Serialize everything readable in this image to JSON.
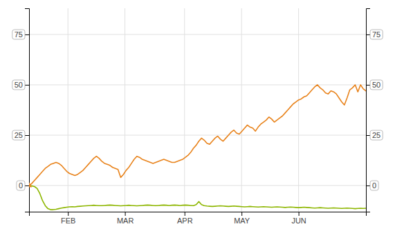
{
  "chart_data": {
    "type": "line",
    "x": [
      0,
      1.04,
      2.08,
      3.12,
      4.16,
      5.2,
      6.24,
      7.28,
      8.32,
      9.36,
      10.4,
      11.44,
      12.48,
      13.52,
      14.56,
      15.6,
      16.64,
      17.68,
      18.72,
      19.76,
      20.8,
      21.84,
      22.88,
      23.92,
      24.96,
      26,
      27.04,
      28.08,
      29.12,
      30.16,
      31.2,
      32.24,
      33.28,
      34.32,
      35.36,
      36.4,
      37.44,
      38.48,
      39.52,
      40.56,
      41.6,
      42.64,
      43.68,
      44.72,
      45.76,
      46.8,
      47.84,
      48.88,
      49.92,
      50.96,
      52,
      53.04,
      54.08,
      55.12,
      56.16,
      57.2,
      58.24,
      59.28,
      60.32,
      61.36,
      62.4,
      63.44,
      64.48,
      65.52,
      66.56,
      67.6,
      68.64,
      69.68,
      70.72,
      71.76,
      72.8,
      73.84,
      74.88,
      75.92,
      76.96,
      78,
      79.04,
      80.08,
      81.12,
      82.16,
      83.2,
      84.24,
      85.28,
      86.32,
      87.36,
      88.4,
      89.44,
      90.48,
      91.52,
      92.56,
      93.6,
      94.64,
      95.68,
      96.72,
      97.76,
      98.8,
      99.84,
      100.88,
      101.92,
      102.96,
      104,
      105.04,
      106.08,
      107.12,
      108.16,
      109.2,
      110.24,
      111.28,
      112.32,
      113.36,
      114.4,
      115.44,
      116.48,
      117.52,
      118.56,
      119.6,
      120.64,
      121.68,
      122.72,
      123.76,
      124.8,
      125.84,
      126.88,
      127.92,
      128.96,
      130
    ],
    "series": [
      {
        "color": "#E8821A",
        "values": [
          0.0,
          1.0,
          2.5,
          4.0,
          5.5,
          7.0,
          8.5,
          9.5,
          10.5,
          11.0,
          11.5,
          11.0,
          10.0,
          8.5,
          7.0,
          6.0,
          5.5,
          5.0,
          5.5,
          6.5,
          7.5,
          9.0,
          10.5,
          12.0,
          13.5,
          14.5,
          13.5,
          12.0,
          11.0,
          10.5,
          10.0,
          9.0,
          8.5,
          8.0,
          4.0,
          5.5,
          7.5,
          9.0,
          11.0,
          13.0,
          14.5,
          14.0,
          13.0,
          12.5,
          12.0,
          11.5,
          11.0,
          11.5,
          12.0,
          12.5,
          13.0,
          12.5,
          12.0,
          11.5,
          11.5,
          12.0,
          12.5,
          13.0,
          14.0,
          15.0,
          16.5,
          18.5,
          20.0,
          22.0,
          23.5,
          22.5,
          21.0,
          20.5,
          22.0,
          23.5,
          24.5,
          23.0,
          22.0,
          23.5,
          25.0,
          26.5,
          27.5,
          26.0,
          25.5,
          27.0,
          28.5,
          30.0,
          29.0,
          28.5,
          27.0,
          29.0,
          30.5,
          31.5,
          32.5,
          34.0,
          33.0,
          31.5,
          32.5,
          33.5,
          34.5,
          36.0,
          37.5,
          39.0,
          40.5,
          41.5,
          42.5,
          43.0,
          44.0,
          44.5,
          46.0,
          47.5,
          49.0,
          50.0,
          48.5,
          47.5,
          46.0,
          45.5,
          47.0,
          46.5,
          45.5,
          43.5,
          41.5,
          40.0,
          43.5,
          47.5,
          48.5,
          50.0,
          46.5,
          50.0,
          48.0,
          47.0
        ]
      },
      {
        "color": "#8DB600",
        "values": [
          0.0,
          -0.2,
          -0.5,
          -1.5,
          -4.0,
          -7.5,
          -10.0,
          -11.5,
          -12.0,
          -12.0,
          -11.8,
          -11.5,
          -11.2,
          -11.0,
          -10.8,
          -10.6,
          -10.5,
          -10.6,
          -10.4,
          -10.3,
          -10.2,
          -10.1,
          -10.0,
          -9.9,
          -9.8,
          -9.9,
          -10.0,
          -10.0,
          -9.9,
          -9.8,
          -9.7,
          -9.8,
          -9.9,
          -10.0,
          -10.1,
          -10.0,
          -9.9,
          -9.8,
          -9.9,
          -10.0,
          -10.1,
          -10.0,
          -9.9,
          -9.8,
          -9.7,
          -9.8,
          -9.9,
          -10.0,
          -9.9,
          -9.8,
          -9.7,
          -9.8,
          -9.9,
          -9.8,
          -9.7,
          -9.8,
          -9.9,
          -9.8,
          -9.7,
          -9.8,
          -9.9,
          -10.0,
          -9.5,
          -8.0,
          -9.5,
          -10.0,
          -10.2,
          -10.3,
          -10.4,
          -10.3,
          -10.2,
          -10.1,
          -10.2,
          -10.3,
          -10.4,
          -10.3,
          -10.2,
          -10.3,
          -10.4,
          -10.5,
          -10.6,
          -10.5,
          -10.4,
          -10.5,
          -10.6,
          -10.7,
          -10.6,
          -10.5,
          -10.6,
          -10.7,
          -10.8,
          -10.7,
          -10.6,
          -10.7,
          -10.8,
          -10.9,
          -10.8,
          -10.7,
          -10.8,
          -10.9,
          -11.0,
          -10.9,
          -10.8,
          -10.9,
          -11.0,
          -11.1,
          -11.2,
          -11.1,
          -11.0,
          -11.1,
          -11.2,
          -11.3,
          -11.2,
          -11.1,
          -11.2,
          -11.3,
          -11.4,
          -11.3,
          -11.2,
          -11.3,
          -11.4,
          -11.5,
          -11.4,
          -11.3,
          -11.4,
          -11.3
        ]
      }
    ],
    "xlim": [
      0,
      130
    ],
    "xticks": [
      {
        "value": 15,
        "label": "FEB"
      },
      {
        "value": 37,
        "label": "MAR"
      },
      {
        "value": 60,
        "label": "APR"
      },
      {
        "value": 82,
        "label": "MAY"
      },
      {
        "value": 104,
        "label": "JUN"
      }
    ],
    "ylim": [
      -13,
      88
    ],
    "yticks": [
      0,
      25,
      50,
      75
    ],
    "grid": true
  }
}
